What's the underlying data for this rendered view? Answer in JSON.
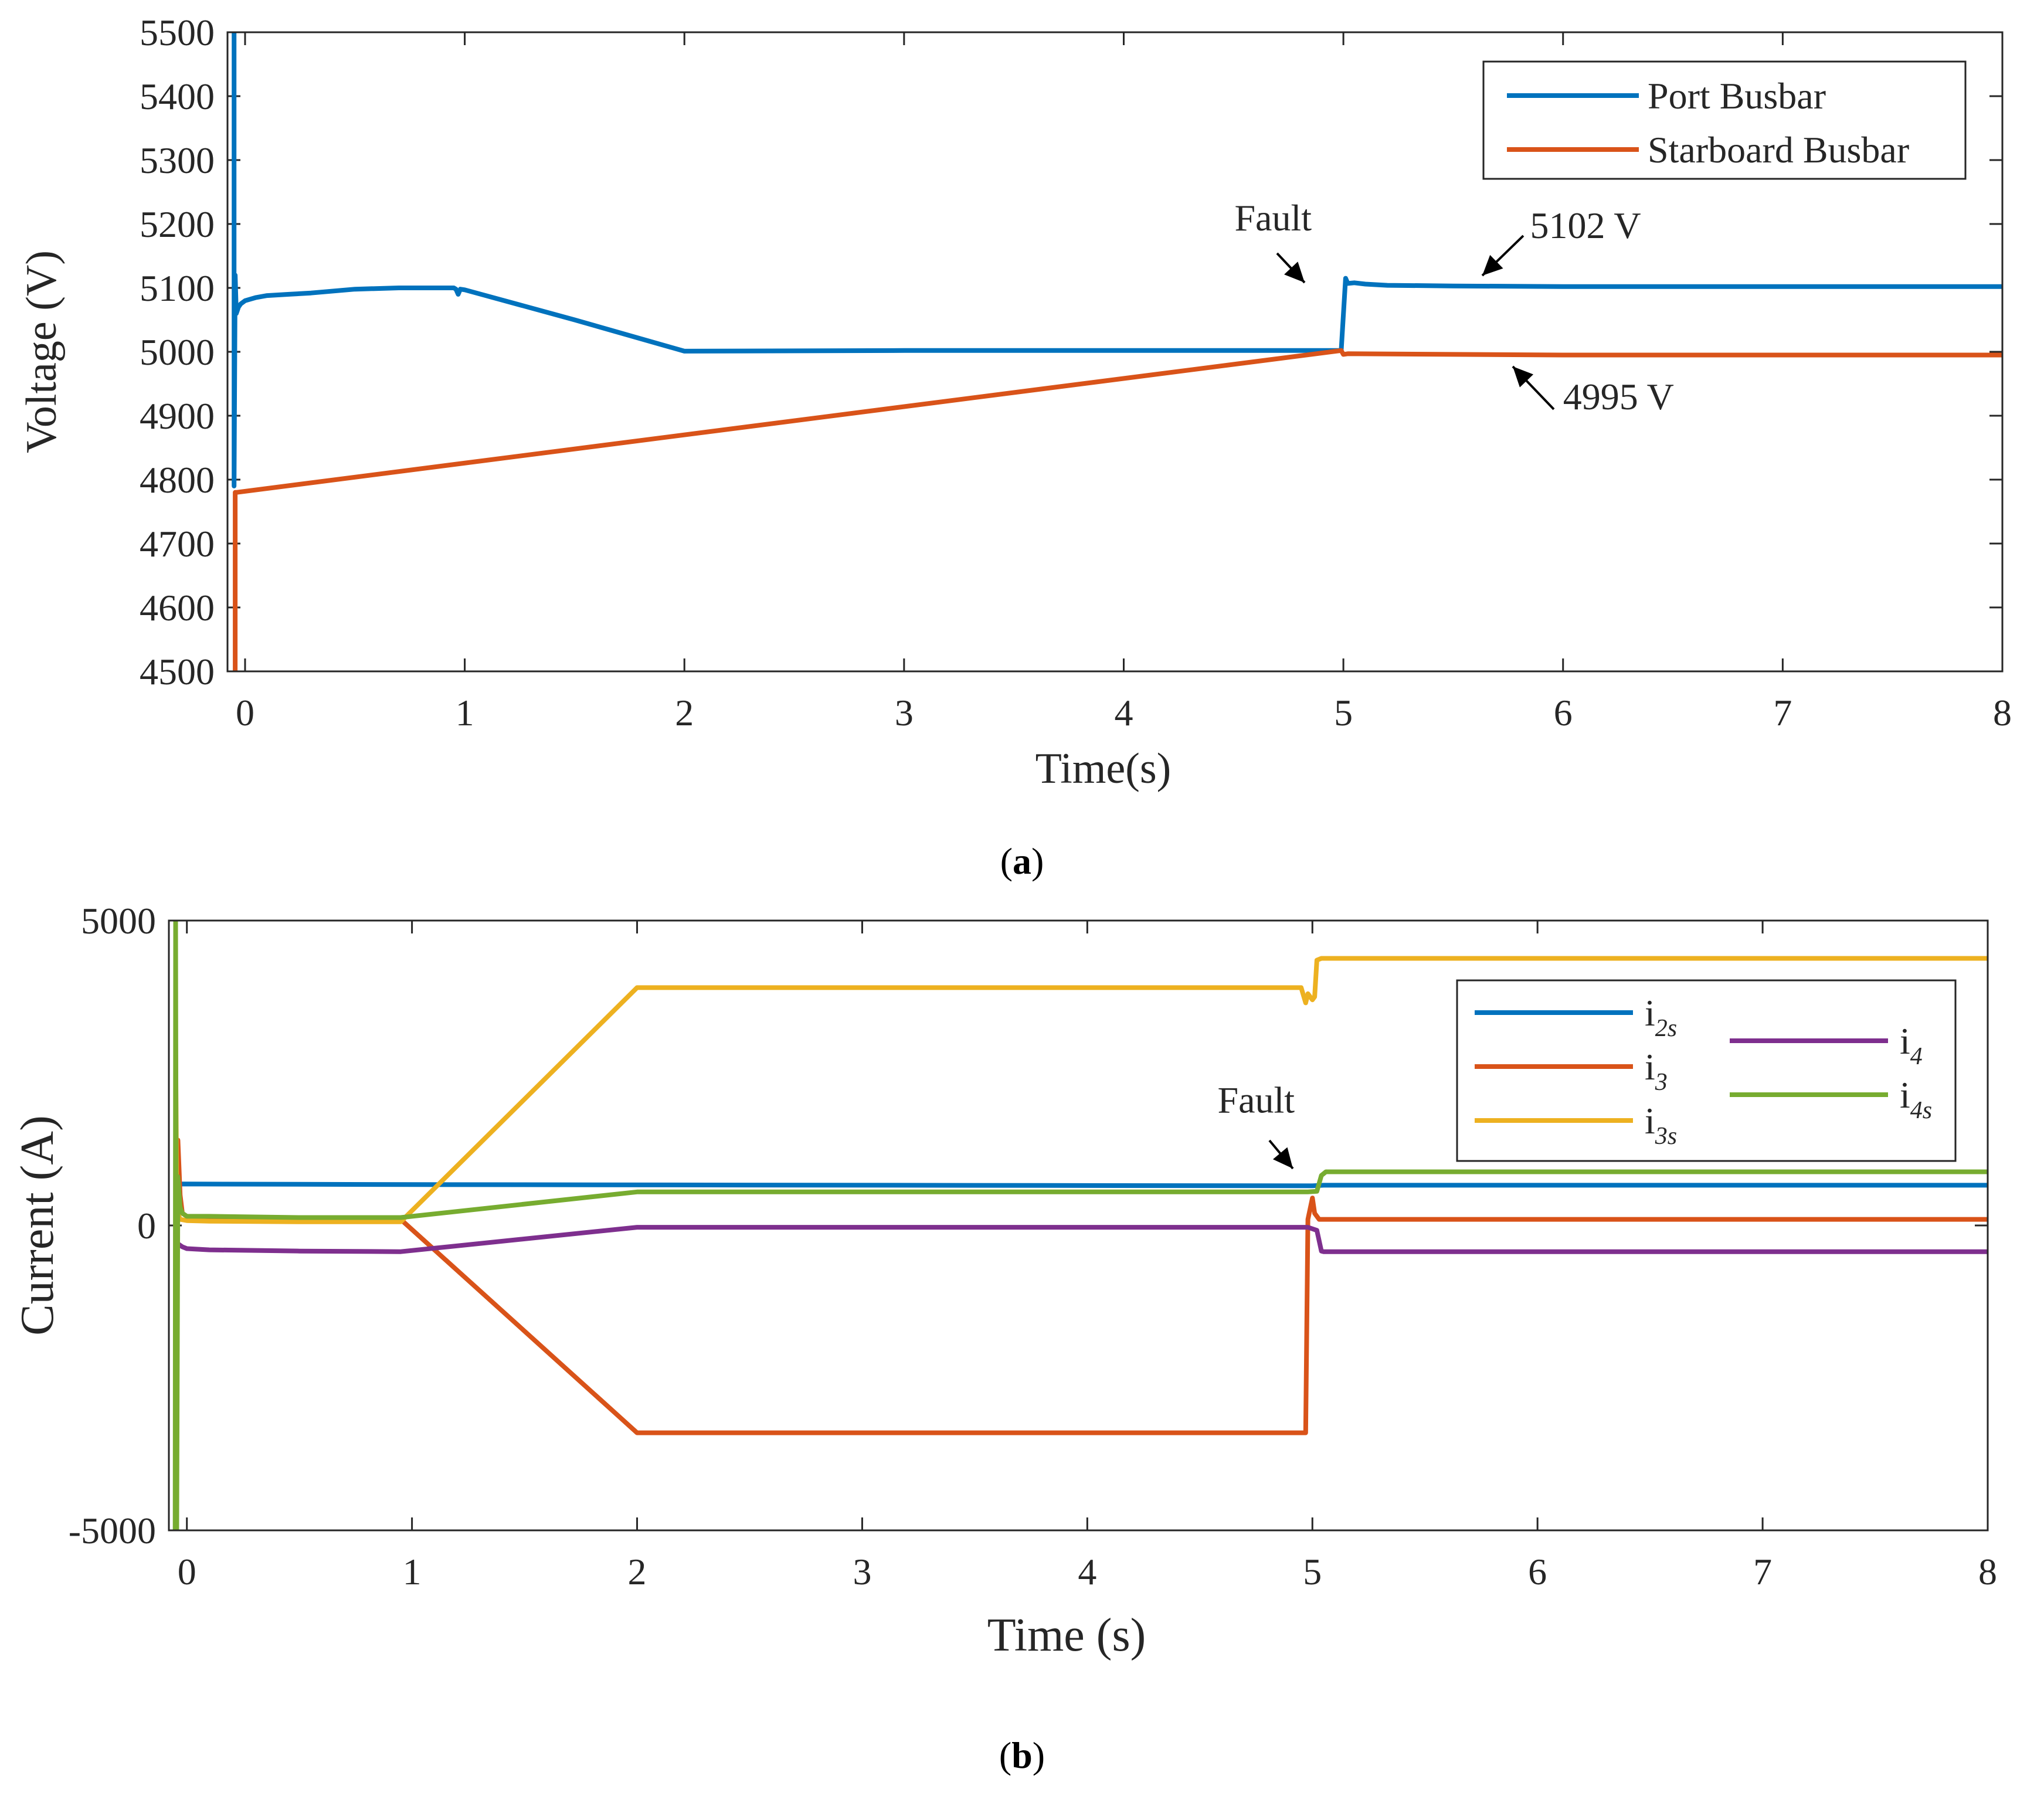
{
  "chart_data": [
    {
      "type": "line",
      "panel_label": "a",
      "title": "",
      "xlabel": "Time(s)",
      "ylabel": "Voltage (V)",
      "xlim": [
        -0.08,
        8
      ],
      "ylim": [
        4500,
        5500
      ],
      "xticks": [
        "0",
        "1",
        "2",
        "3",
        "4",
        "5",
        "6",
        "7",
        "8"
      ],
      "yticks": [
        "4500",
        "4600",
        "4700",
        "4800",
        "4900",
        "5000",
        "5100",
        "5200",
        "5300",
        "5400",
        "5500"
      ],
      "legend_position": "top-right",
      "series": [
        {
          "name": "Port Busbar",
          "color": "#0072BD",
          "x": [
            -0.05,
            -0.05,
            -0.045,
            -0.04,
            -0.035,
            -0.03,
            -0.02,
            0.0,
            0.05,
            0.1,
            0.2,
            0.3,
            0.5,
            0.7,
            0.95,
            0.96,
            0.97,
            0.98,
            1.0,
            1.5,
            2.0,
            3.0,
            4.0,
            4.98,
            4.99,
            5.01,
            5.02,
            5.05,
            5.1,
            5.2,
            5.5,
            6.0,
            7.0,
            8.0
          ],
          "values": [
            5500,
            4790,
            5120,
            5060,
            5065,
            5070,
            5075,
            5080,
            5085,
            5088,
            5090,
            5092,
            5098,
            5100,
            5100,
            5098,
            5090,
            5098,
            5097,
            5050,
            5001,
            5002,
            5002,
            5002,
            5002,
            5115,
            5107,
            5108,
            5106,
            5104,
            5103,
            5102,
            5102,
            5102
          ]
        },
        {
          "name": "Starboard Busbar",
          "color": "#D95319",
          "x": [
            -0.045,
            -0.045,
            -0.04,
            4.99,
            5.0,
            5.02,
            6.0,
            8.0
          ],
          "values": [
            4500,
            4780,
            4780,
            5002,
            4996,
            4997,
            4995,
            4995
          ]
        }
      ],
      "annotations": [
        {
          "text": "Fault",
          "x": 4.68,
          "y": 5190
        },
        {
          "text": "5102 V",
          "x": 5.85,
          "y": 5178
        },
        {
          "text": "4995 V",
          "x": 6.0,
          "y": 4910
        }
      ]
    },
    {
      "type": "line",
      "panel_label": "b",
      "title": "",
      "xlabel": "Time (s)",
      "ylabel": "Current (A)",
      "xlim": [
        -0.08,
        8
      ],
      "ylim": [
        -5000,
        5000
      ],
      "xticks": [
        "0",
        "1",
        "2",
        "3",
        "4",
        "5",
        "6",
        "7",
        "8"
      ],
      "yticks": [
        "-5000",
        "0",
        "5000"
      ],
      "legend_position": "top-right",
      "series": [
        {
          "name": "i2s",
          "label_main": "i",
          "label_sub": "2s",
          "color": "#0072BD",
          "x": [
            -0.05,
            -0.04,
            -0.03,
            1.0,
            5.0,
            5.05,
            8.0
          ],
          "values": [
            500,
            650,
            680,
            670,
            650,
            660,
            660
          ]
        },
        {
          "name": "i3",
          "label_main": "i",
          "label_sub": "3",
          "color": "#D95319",
          "x": [
            -0.05,
            -0.04,
            -0.03,
            -0.02,
            0.0,
            0.1,
            0.5,
            0.95,
            2.0,
            4.97,
            4.98,
            5.0,
            5.01,
            5.03,
            8.0
          ],
          "values": [
            300,
            1400,
            500,
            200,
            150,
            120,
            100,
            100,
            -3400,
            -3400,
            100,
            450,
            200,
            100,
            100
          ]
        },
        {
          "name": "i3s",
          "label_main": "i",
          "label_sub": "3s",
          "color": "#EDB120",
          "x": [
            -0.05,
            -0.045,
            -0.04,
            -0.03,
            0.0,
            0.1,
            0.5,
            0.95,
            2.0,
            4.95,
            4.97,
            4.98,
            5.0,
            5.01,
            5.02,
            5.04,
            8.0
          ],
          "values": [
            3000,
            500,
            200,
            100,
            80,
            70,
            60,
            60,
            3900,
            3900,
            3650,
            3800,
            3700,
            3750,
            4350,
            4380,
            4380
          ]
        },
        {
          "name": "i4",
          "label_main": "i",
          "label_sub": "4",
          "color": "#7E2F8E",
          "x": [
            -0.05,
            -0.04,
            -0.02,
            0.0,
            0.1,
            0.5,
            0.95,
            2.0,
            4.98,
            5.02,
            5.04,
            5.05,
            8.0
          ],
          "values": [
            -800,
            -300,
            -350,
            -380,
            -400,
            -420,
            -430,
            -30,
            -30,
            -80,
            -420,
            -430,
            -430
          ]
        },
        {
          "name": "i4s",
          "label_main": "i",
          "label_sub": "4s",
          "color": "#77AC30",
          "x": [
            -0.052,
            -0.05,
            -0.045,
            -0.04,
            -0.03,
            -0.02,
            0.0,
            0.1,
            0.5,
            0.95,
            2.0,
            4.98,
            5.02,
            5.04,
            5.06,
            8.0
          ],
          "values": [
            -5000,
            5000,
            -5000,
            800,
            300,
            200,
            150,
            150,
            130,
            130,
            550,
            550,
            560,
            820,
            880,
            880
          ]
        }
      ],
      "annotations": [
        {
          "text": "Fault",
          "x": 4.75,
          "y": 1850
        }
      ]
    }
  ]
}
